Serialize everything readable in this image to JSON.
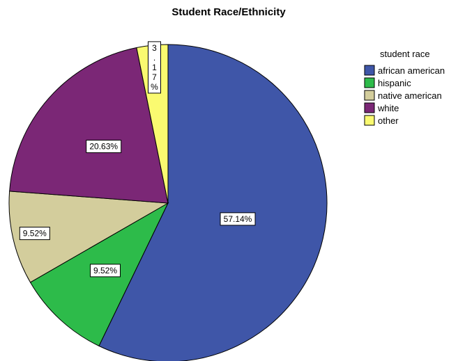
{
  "chart_data": {
    "type": "pie",
    "title": "Student Race/Ethnicity",
    "legend_title": "student race",
    "legend_position": "top-right",
    "categories": [
      "african american",
      "hispanic",
      "native american",
      "white",
      "other"
    ],
    "values": [
      57.14,
      9.52,
      9.52,
      20.63,
      3.17
    ],
    "labels": [
      "57.14%",
      "9.52%",
      "9.52%",
      "20.63%",
      "3.17%"
    ],
    "colors": [
      "#3f56a8",
      "#2dbb4a",
      "#d3cd9c",
      "#7b2776",
      "#fafa70"
    ]
  }
}
